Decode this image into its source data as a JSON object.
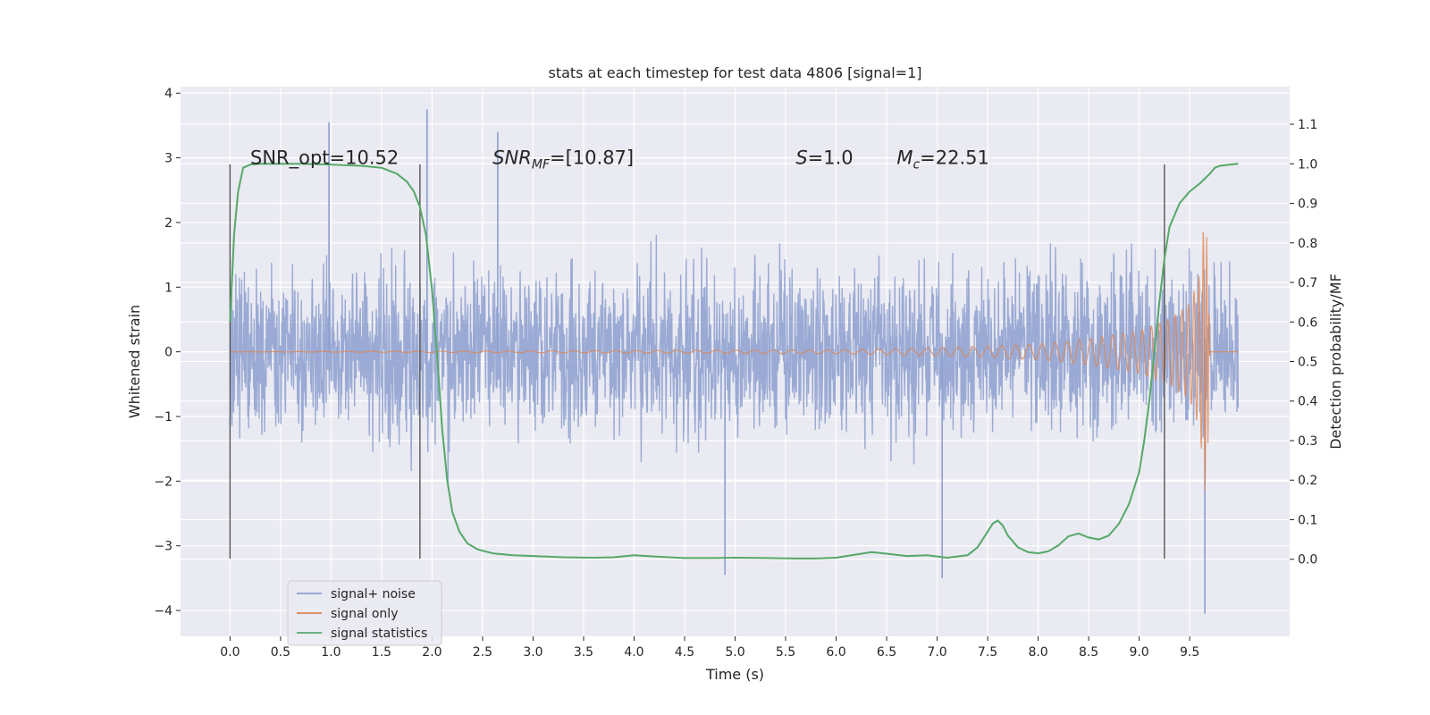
{
  "chart_data": {
    "type": "line",
    "title": "stats at each timestep for test data 4806 [signal=1]",
    "xlabel": "Time (s)",
    "ylabel": "Whitened strain",
    "y2label": "Detection probability/MF",
    "xlim": [
      -0.49,
      10.49
    ],
    "ylim": [
      -4.4,
      4.1
    ],
    "y2lim": [
      -0.195,
      1.195
    ],
    "x_ticks": [
      "0.0",
      "0.5",
      "1.0",
      "1.5",
      "2.0",
      "2.5",
      "3.0",
      "3.5",
      "4.0",
      "4.5",
      "5.0",
      "5.5",
      "6.0",
      "6.5",
      "7.0",
      "7.5",
      "8.0",
      "8.5",
      "9.0",
      "9.5"
    ],
    "y_ticks": [
      "−4",
      "−3",
      "−2",
      "−1",
      "0",
      "1",
      "2",
      "3",
      "4"
    ],
    "y2_ticks": [
      "0.0",
      "0.1",
      "0.2",
      "0.3",
      "0.4",
      "0.5",
      "0.6",
      "0.7",
      "0.8",
      "0.9",
      "1.0",
      "1.1"
    ],
    "grid": true,
    "legend_position": "lower-left",
    "annotations": [
      {
        "parts": [
          {
            "text": "SNR_opt=10.52"
          }
        ],
        "x": 0.2,
        "y": 1.0
      },
      {
        "parts": [
          {
            "text": "SNR",
            "style": "italic"
          },
          {
            "text": "MF",
            "style": "italic-sub"
          },
          {
            "text": "=[10.87]"
          }
        ],
        "x": 2.6,
        "y": 1.0
      },
      {
        "parts": [
          {
            "text": "S",
            "style": "italic"
          },
          {
            "text": "=1.0"
          }
        ],
        "x": 5.6,
        "y": 1.0
      },
      {
        "parts": [
          {
            "text": "M",
            "style": "italic"
          },
          {
            "text": "c",
            "style": "italic-sub"
          },
          {
            "text": "=22.51"
          }
        ],
        "x": 6.6,
        "y": 1.0
      }
    ],
    "vlines": [
      0.0,
      1.88,
      9.25
    ],
    "vline_range": [
      -3.2,
      2.9
    ],
    "series": [
      {
        "name": "signal+ noise",
        "color": "#8c9fcf",
        "t_range": [
          0.0,
          9.98
        ],
        "typical_amplitude": 1.65,
        "notable_peaks": [
          [
            0.98,
            3.55
          ],
          [
            1.95,
            3.75
          ],
          [
            2.65,
            3.4
          ],
          [
            4.9,
            -3.45
          ],
          [
            7.05,
            -3.5
          ],
          [
            9.65,
            -4.05
          ]
        ]
      },
      {
        "name": "signal only",
        "color": "#dd8452",
        "envelope": [
          [
            0.0,
            0.0
          ],
          [
            6.0,
            0.03
          ],
          [
            7.0,
            0.06
          ],
          [
            8.0,
            0.12
          ],
          [
            8.5,
            0.2
          ],
          [
            9.0,
            0.33
          ],
          [
            9.3,
            0.5
          ],
          [
            9.5,
            0.75
          ],
          [
            9.6,
            1.2
          ],
          [
            9.65,
            2.2
          ],
          [
            9.68,
            1.5
          ],
          [
            9.7,
            0.0
          ],
          [
            9.98,
            0.0
          ]
        ]
      },
      {
        "name": "signal statistics",
        "color": "#55a868",
        "axis": "right",
        "x": [
          0.0,
          0.04,
          0.08,
          0.13,
          0.2,
          0.3,
          0.45,
          0.7,
          1.0,
          1.3,
          1.5,
          1.65,
          1.75,
          1.82,
          1.88,
          1.94,
          2.0,
          2.06,
          2.1,
          2.15,
          2.2,
          2.27,
          2.35,
          2.45,
          2.6,
          2.8,
          3.0,
          3.3,
          3.6,
          3.8,
          4.0,
          4.2,
          4.5,
          4.8,
          5.0,
          5.3,
          5.6,
          5.8,
          6.0,
          6.2,
          6.35,
          6.5,
          6.7,
          6.9,
          7.1,
          7.3,
          7.4,
          7.5,
          7.55,
          7.6,
          7.65,
          7.7,
          7.8,
          7.9,
          8.0,
          8.1,
          8.2,
          8.3,
          8.4,
          8.5,
          8.6,
          8.7,
          8.8,
          8.9,
          9.0,
          9.05,
          9.1,
          9.15,
          9.2,
          9.25,
          9.3,
          9.4,
          9.5,
          9.6,
          9.7,
          9.75,
          9.8,
          9.9,
          9.98
        ],
        "y": [
          0.6,
          0.82,
          0.93,
          0.99,
          0.998,
          1.0,
          1.0,
          1.0,
          0.998,
          0.995,
          0.99,
          0.975,
          0.955,
          0.93,
          0.89,
          0.82,
          0.68,
          0.48,
          0.33,
          0.2,
          0.12,
          0.07,
          0.04,
          0.025,
          0.015,
          0.01,
          0.008,
          0.005,
          0.004,
          0.005,
          0.01,
          0.007,
          0.003,
          0.003,
          0.004,
          0.003,
          0.002,
          0.002,
          0.004,
          0.012,
          0.018,
          0.014,
          0.008,
          0.01,
          0.004,
          0.01,
          0.03,
          0.07,
          0.09,
          0.098,
          0.085,
          0.06,
          0.03,
          0.018,
          0.015,
          0.02,
          0.035,
          0.058,
          0.065,
          0.055,
          0.05,
          0.06,
          0.09,
          0.14,
          0.22,
          0.3,
          0.4,
          0.52,
          0.65,
          0.76,
          0.84,
          0.9,
          0.93,
          0.95,
          0.975,
          0.99,
          0.995,
          0.998,
          1.0
        ]
      }
    ]
  }
}
